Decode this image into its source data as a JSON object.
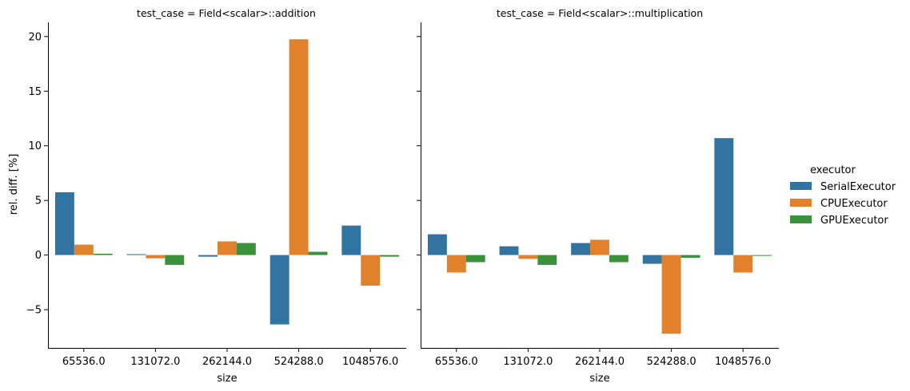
{
  "chart_data": {
    "type": "bar",
    "facet_label": "test_case",
    "xlabel": "size",
    "ylabel": "rel. diff. [%]",
    "ylim": [
      -8.5,
      21.3
    ],
    "yticks": [
      {
        "value": -5,
        "label": "−5"
      },
      {
        "value": 0,
        "label": "0"
      },
      {
        "value": 5,
        "label": "5"
      },
      {
        "value": 10,
        "label": "10"
      },
      {
        "value": 15,
        "label": "15"
      },
      {
        "value": 20,
        "label": "20"
      }
    ],
    "categories": [
      "65536.0",
      "131072.0",
      "262144.0",
      "524288.0",
      "1048576.0"
    ],
    "legend": {
      "title": "executor",
      "placement": "right",
      "entries": [
        {
          "name": "SerialExecutor",
          "color": "#3274a1"
        },
        {
          "name": "CPUExecutor",
          "color": "#e1812c"
        },
        {
          "name": "GPUExecutor",
          "color": "#3a923a"
        }
      ]
    },
    "panels": [
      {
        "title": "test_case = Field<scalar>::addition",
        "series": [
          {
            "name": "SerialExecutor",
            "values": [
              5.75,
              0.08,
              -0.15,
              -6.35,
              2.7
            ]
          },
          {
            "name": "CPUExecutor",
            "values": [
              0.95,
              -0.3,
              1.25,
              19.75,
              -2.8
            ]
          },
          {
            "name": "GPUExecutor",
            "values": [
              0.12,
              -0.9,
              1.1,
              0.3,
              -0.15
            ]
          }
        ]
      },
      {
        "title": "test_case = Field<scalar>::multiplication",
        "series": [
          {
            "name": "SerialExecutor",
            "values": [
              1.9,
              0.8,
              1.1,
              -0.8,
              10.7
            ]
          },
          {
            "name": "CPUExecutor",
            "values": [
              -1.6,
              -0.35,
              1.4,
              -7.2,
              -1.6
            ]
          },
          {
            "name": "GPUExecutor",
            "values": [
              -0.65,
              -0.9,
              -0.65,
              -0.25,
              -0.05
            ]
          }
        ]
      }
    ]
  }
}
